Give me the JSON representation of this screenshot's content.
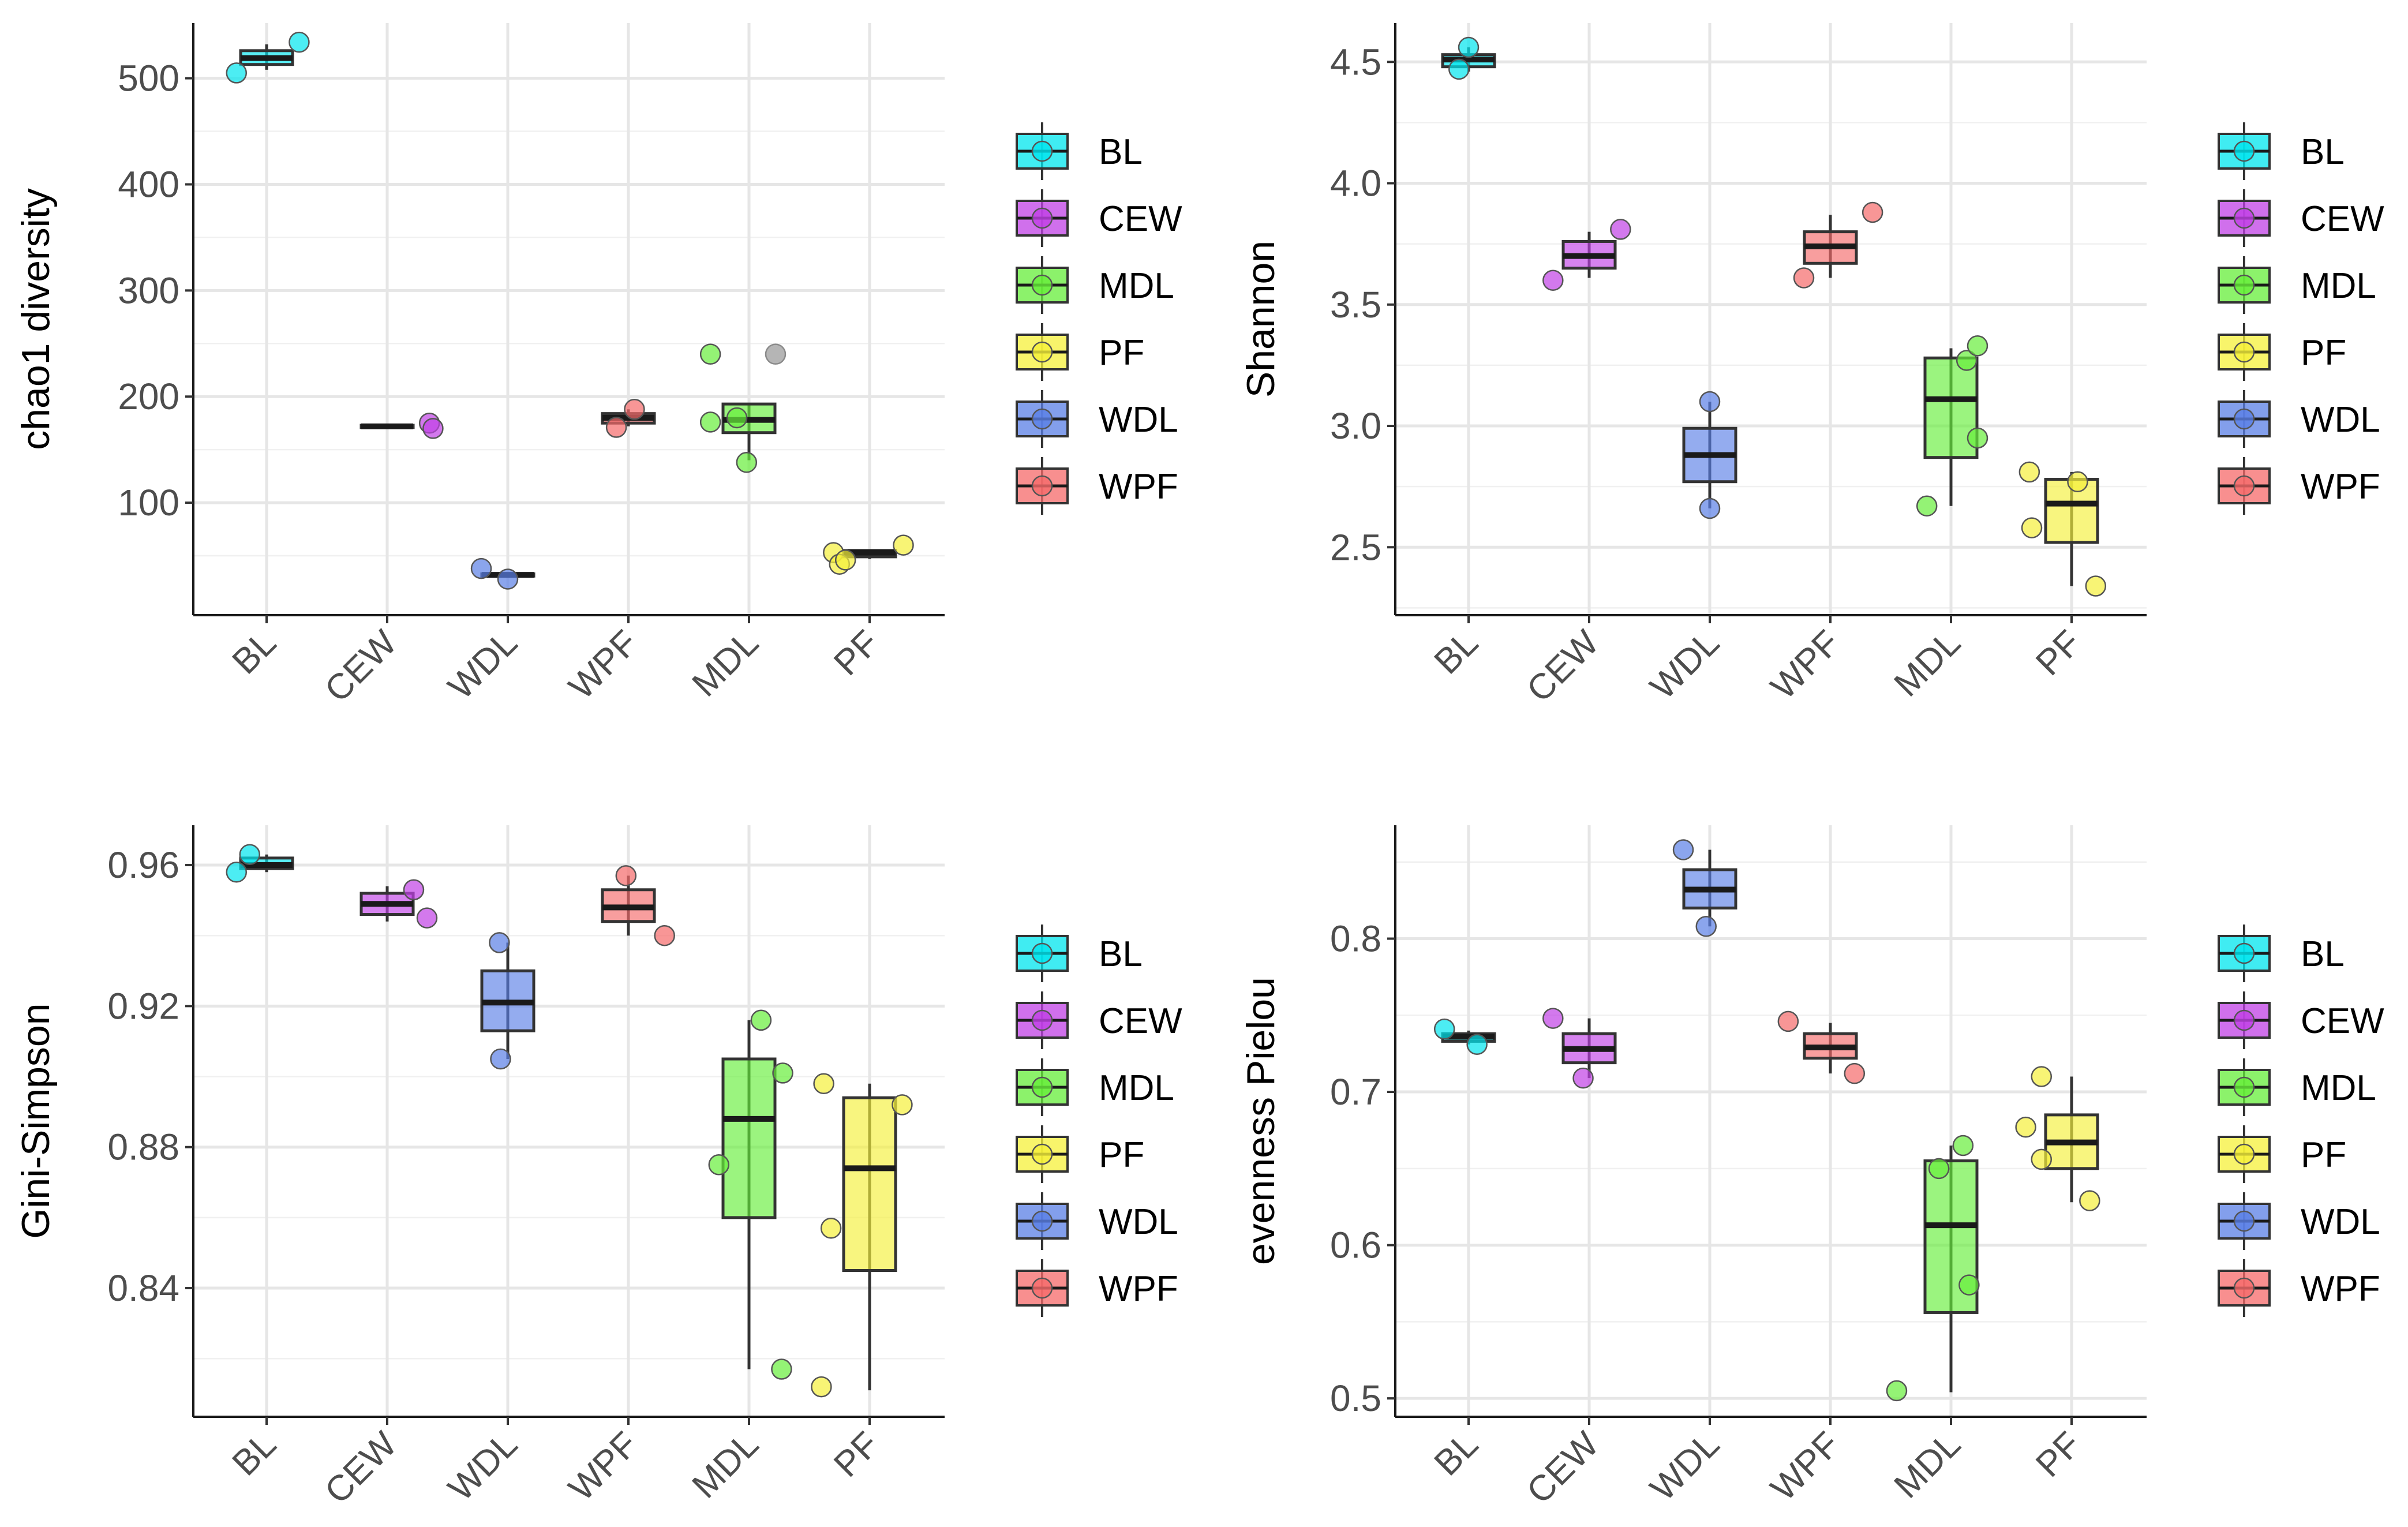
{
  "groups": [
    "BL",
    "CEW",
    "WDL",
    "WPF",
    "MDL",
    "PF"
  ],
  "legend": {
    "entries": [
      "BL",
      "CEW",
      "MDL",
      "PF",
      "WDL",
      "WPF"
    ],
    "colors": {
      "BL": "#00E5EE",
      "CEW": "#C040E6",
      "MDL": "#66EE3A",
      "PF": "#F5F03A",
      "WDL": "#5A7FE6",
      "WPF": "#F56A6A"
    }
  },
  "chart_data": [
    {
      "type": "box",
      "ylabel": "chao1 diversity",
      "categories": [
        "BL",
        "CEW",
        "WDL",
        "WPF",
        "MDL",
        "PF"
      ],
      "ylim": [
        -6,
        552
      ],
      "yticks": [
        100,
        200,
        300,
        400,
        500
      ],
      "ytick_labels": [
        "100",
        "200",
        "300",
        "400",
        "500"
      ],
      "minor_ticks": [
        50,
        150,
        250,
        350,
        450
      ],
      "boxes": {
        "BL": {
          "q1": 513,
          "median": 519,
          "q3": 526,
          "lower": 508,
          "upper": 532
        },
        "CEW": {
          "q1": 171,
          "median": 172,
          "q3": 173,
          "lower": 171,
          "upper": 173
        },
        "WDL": {
          "q1": 31,
          "median": 32,
          "q3": 33,
          "lower": 30,
          "upper": 34
        },
        "WPF": {
          "q1": 175,
          "median": 180,
          "q3": 184,
          "lower": 172,
          "upper": 188
        },
        "MDL": {
          "q1": 166,
          "median": 178,
          "q3": 193,
          "lower": 140,
          "upper": 193
        },
        "PF": {
          "q1": 49,
          "median": 53,
          "q3": 55,
          "lower": 47,
          "upper": 56
        }
      },
      "points": {
        "BL": [
          [
            -0.25,
            505
          ],
          [
            0.27,
            534
          ]
        ],
        "CEW": [
          [
            0.35,
            175
          ],
          [
            0.38,
            170
          ]
        ],
        "WDL": [
          [
            -0.22,
            38
          ],
          [
            0.0,
            28
          ]
        ],
        "WPF": [
          [
            -0.1,
            171
          ],
          [
            0.05,
            188
          ]
        ],
        "MDL": [
          [
            -0.32,
            240
          ],
          [
            -0.32,
            176
          ],
          [
            -0.1,
            180
          ],
          [
            -0.02,
            138
          ],
          [
            0.22,
            240
          ]
        ],
        "PF": [
          [
            -0.3,
            53
          ],
          [
            -0.25,
            42
          ],
          [
            -0.2,
            46
          ],
          [
            0.28,
            60
          ]
        ]
      },
      "gray_points": [
        [
          "MDL",
          0.22,
          240
        ]
      ]
    },
    {
      "type": "box",
      "ylabel": "Shannon",
      "categories": [
        "BL",
        "CEW",
        "WDL",
        "WPF",
        "MDL",
        "PF"
      ],
      "ylim": [
        2.22,
        4.66
      ],
      "yticks": [
        2.5,
        3.0,
        3.5,
        4.0,
        4.5
      ],
      "ytick_labels": [
        "2.5",
        "3.0",
        "3.5",
        "4.0",
        "4.5"
      ],
      "minor_ticks": [
        2.25,
        2.75,
        3.25,
        3.75,
        4.25
      ],
      "boxes": {
        "BL": {
          "q1": 4.48,
          "median": 4.51,
          "q3": 4.53,
          "lower": 4.46,
          "upper": 4.56
        },
        "CEW": {
          "q1": 3.65,
          "median": 3.7,
          "q3": 3.76,
          "lower": 3.61,
          "upper": 3.8
        },
        "WDL": {
          "q1": 2.77,
          "median": 2.88,
          "q3": 2.99,
          "lower": 2.66,
          "upper": 3.1
        },
        "WPF": {
          "q1": 3.67,
          "median": 3.74,
          "q3": 3.8,
          "lower": 3.61,
          "upper": 3.87
        },
        "MDL": {
          "q1": 2.87,
          "median": 3.11,
          "q3": 3.28,
          "lower": 2.67,
          "upper": 3.32
        },
        "PF": {
          "q1": 2.52,
          "median": 2.68,
          "q3": 2.78,
          "lower": 2.34,
          "upper": 2.81
        }
      },
      "points": {
        "BL": [
          [
            -0.08,
            4.47
          ],
          [
            0.0,
            4.56
          ]
        ],
        "CEW": [
          [
            -0.3,
            3.6
          ],
          [
            0.26,
            3.81
          ]
        ],
        "WDL": [
          [
            0.0,
            2.66
          ],
          [
            0.0,
            3.1
          ]
        ],
        "WPF": [
          [
            -0.22,
            3.61
          ],
          [
            0.35,
            3.88
          ]
        ],
        "MDL": [
          [
            -0.2,
            2.67
          ],
          [
            0.13,
            3.27
          ],
          [
            0.22,
            3.33
          ],
          [
            0.22,
            2.95
          ]
        ],
        "PF": [
          [
            -0.35,
            2.81
          ],
          [
            -0.33,
            2.58
          ],
          [
            0.05,
            2.77
          ],
          [
            0.2,
            2.34
          ]
        ]
      },
      "gray_points": []
    },
    {
      "type": "box",
      "ylabel": "Gini-Simpson",
      "categories": [
        "BL",
        "CEW",
        "WDL",
        "WPF",
        "MDL",
        "PF"
      ],
      "ylim": [
        0.8035,
        0.9713
      ],
      "yticks": [
        0.84,
        0.88,
        0.92,
        0.96
      ],
      "ytick_labels": [
        "0.84",
        "0.88",
        "0.92",
        "0.96"
      ],
      "minor_ticks": [
        0.82,
        0.86,
        0.9,
        0.94
      ],
      "boxes": {
        "BL": {
          "q1": 0.959,
          "median": 0.96,
          "q3": 0.962,
          "lower": 0.958,
          "upper": 0.963
        },
        "CEW": {
          "q1": 0.946,
          "median": 0.949,
          "q3": 0.952,
          "lower": 0.944,
          "upper": 0.954
        },
        "WDL": {
          "q1": 0.913,
          "median": 0.921,
          "q3": 0.93,
          "lower": 0.905,
          "upper": 0.938
        },
        "WPF": {
          "q1": 0.944,
          "median": 0.948,
          "q3": 0.953,
          "lower": 0.94,
          "upper": 0.957
        },
        "MDL": {
          "q1": 0.86,
          "median": 0.888,
          "q3": 0.905,
          "lower": 0.817,
          "upper": 0.916
        },
        "PF": {
          "q1": 0.845,
          "median": 0.874,
          "q3": 0.894,
          "lower": 0.811,
          "upper": 0.898
        }
      },
      "points": {
        "BL": [
          [
            -0.25,
            0.958
          ],
          [
            -0.14,
            0.963
          ]
        ],
        "CEW": [
          [
            0.22,
            0.953
          ],
          [
            0.33,
            0.945
          ]
        ],
        "WDL": [
          [
            -0.07,
            0.938
          ],
          [
            -0.06,
            0.905
          ]
        ],
        "WPF": [
          [
            -0.02,
            0.957
          ],
          [
            0.3,
            0.94
          ]
        ],
        "MDL": [
          [
            -0.25,
            0.875
          ],
          [
            0.1,
            0.916
          ],
          [
            0.28,
            0.901
          ],
          [
            0.27,
            0.817
          ]
        ],
        "PF": [
          [
            -0.4,
            0.812
          ],
          [
            -0.38,
            0.898
          ],
          [
            -0.32,
            0.857
          ],
          [
            0.27,
            0.892
          ]
        ]
      },
      "gray_points": []
    },
    {
      "type": "box",
      "ylabel": "evenness Pielou",
      "categories": [
        "BL",
        "CEW",
        "WDL",
        "WPF",
        "MDL",
        "PF"
      ],
      "ylim": [
        0.488,
        0.874
      ],
      "yticks": [
        0.5,
        0.6,
        0.7,
        0.8
      ],
      "ytick_labels": [
        "0.5",
        "0.6",
        "0.7",
        "0.8"
      ],
      "minor_ticks": [
        0.55,
        0.65,
        0.75,
        0.85
      ],
      "boxes": {
        "BL": {
          "q1": 0.733,
          "median": 0.736,
          "q3": 0.738,
          "lower": 0.731,
          "upper": 0.74
        },
        "CEW": {
          "q1": 0.719,
          "median": 0.728,
          "q3": 0.738,
          "lower": 0.709,
          "upper": 0.748
        },
        "WDL": {
          "q1": 0.82,
          "median": 0.832,
          "q3": 0.845,
          "lower": 0.808,
          "upper": 0.858
        },
        "WPF": {
          "q1": 0.722,
          "median": 0.729,
          "q3": 0.738,
          "lower": 0.712,
          "upper": 0.745
        },
        "MDL": {
          "q1": 0.556,
          "median": 0.613,
          "q3": 0.655,
          "lower": 0.504,
          "upper": 0.665
        },
        "PF": {
          "q1": 0.65,
          "median": 0.667,
          "q3": 0.685,
          "lower": 0.628,
          "upper": 0.71
        }
      },
      "points": {
        "BL": [
          [
            -0.2,
            0.741
          ],
          [
            0.07,
            0.731
          ]
        ],
        "CEW": [
          [
            -0.3,
            0.748
          ],
          [
            -0.05,
            0.709
          ]
        ],
        "WDL": [
          [
            -0.22,
            0.858
          ],
          [
            -0.03,
            0.808
          ]
        ],
        "WPF": [
          [
            -0.35,
            0.746
          ],
          [
            0.2,
            0.712
          ]
        ],
        "MDL": [
          [
            -0.45,
            0.505
          ],
          [
            -0.1,
            0.65
          ],
          [
            0.1,
            0.665
          ],
          [
            0.15,
            0.574
          ]
        ],
        "PF": [
          [
            -0.38,
            0.677
          ],
          [
            -0.25,
            0.656
          ],
          [
            -0.25,
            0.71
          ],
          [
            0.15,
            0.629
          ]
        ]
      },
      "gray_points": []
    }
  ]
}
